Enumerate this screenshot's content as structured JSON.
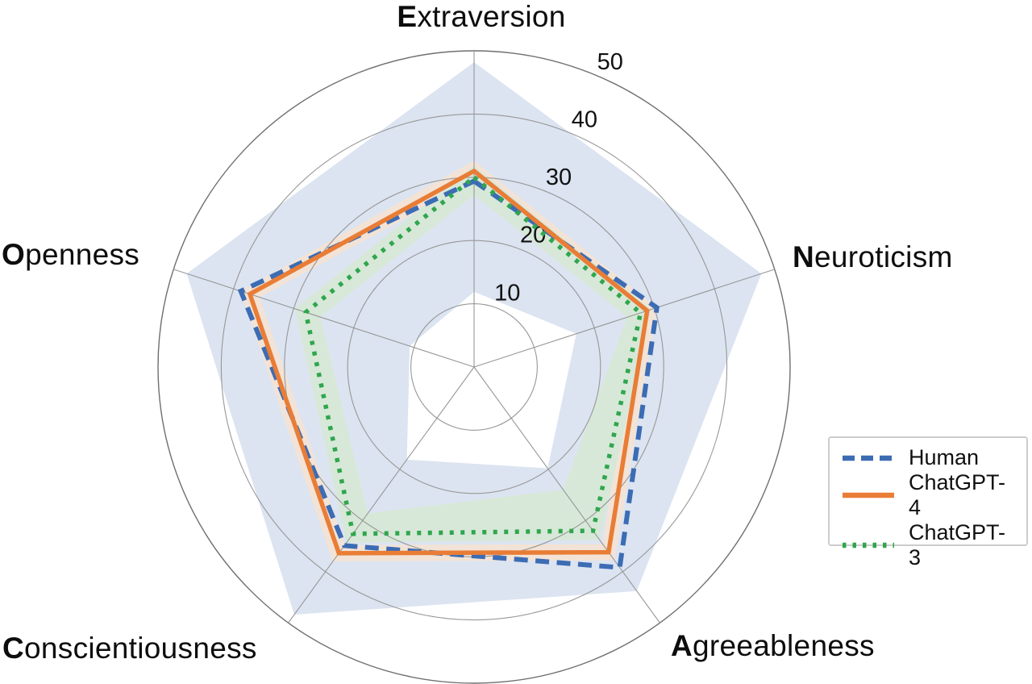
{
  "chart_data": {
    "type": "radar",
    "title": "",
    "categories": [
      "Extraversion",
      "Neuroticism",
      "Agreeableness",
      "Conscientiousness",
      "Openness"
    ],
    "axis_order": "clockwise-from-top",
    "r_ticks": [
      10,
      20,
      30,
      40,
      50
    ],
    "r_tick_labels": [
      "10",
      "20",
      "30",
      "40",
      "50"
    ],
    "r_max": 50,
    "r_label_angle_deg": 24,
    "grid": {
      "shape": "circular",
      "color": "#979797",
      "outer_circle_color": "#6f6f6f"
    },
    "series": [
      {
        "id": "human",
        "name": "Human",
        "line_style": "dashed",
        "color": "#3C6CB4",
        "values": [
          29.4,
          30.4,
          39.2,
          34.9,
          38.8
        ],
        "band": {
          "color": "#DCE4F1",
          "outer": [
            48.2,
            47.8,
            43.8,
            48.4,
            47.8
          ],
          "inner": [
            11.9,
            17.0,
            19.8,
            18.1,
            10.7
          ]
        }
      },
      {
        "id": "chatgpt-4",
        "name": "ChatGPT-4",
        "line_style": "solid",
        "color": "#E97D36",
        "values": [
          31.0,
          28.8,
          36.2,
          36.4,
          37.3
        ],
        "band": {
          "color": "#F2E3D6",
          "outer": [
            32.6,
            30.4,
            37.8,
            38.0,
            38.9
          ],
          "inner": [
            29.4,
            27.2,
            34.6,
            34.8,
            35.7
          ]
        }
      },
      {
        "id": "chatgpt-3",
        "name": "ChatGPT-3",
        "line_style": "dotted",
        "color": "#2FA64D",
        "values": [
          30.0,
          27.7,
          32.0,
          32.6,
          28.0
        ],
        "band": {
          "color": "#D7E8D8",
          "outer": [
            31.8,
            29.4,
            33.8,
            34.3,
            29.8
          ],
          "inner": [
            27.2,
            25.5,
            24.0,
            28.6,
            25.6
          ]
        }
      }
    ],
    "legend": {
      "position": "center-right",
      "items": [
        "Human",
        "ChatGPT-4",
        "ChatGPT-3"
      ]
    }
  }
}
